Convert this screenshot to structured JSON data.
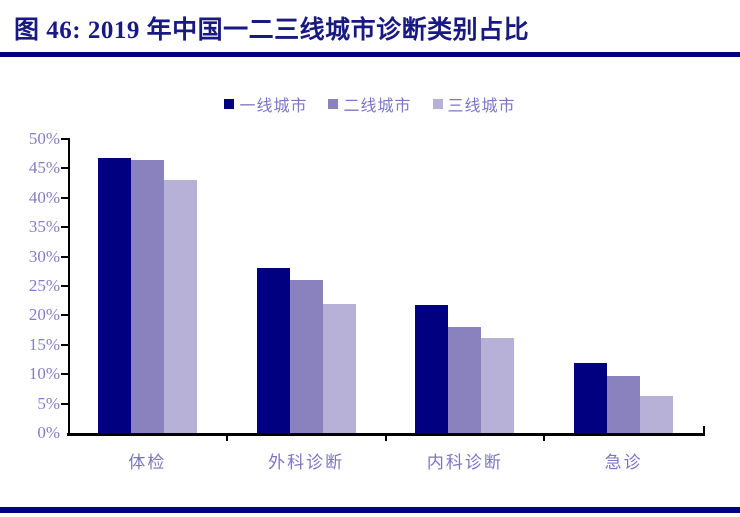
{
  "title": "图 46:  2019 年中国一二三线城市诊断类别占比",
  "accent_color": "#000080",
  "text_colors": {
    "title": "#191984",
    "axis_labels": "#837CCB",
    "category_labels": "#7C75C5",
    "legend_labels": "#7C75C5"
  },
  "chart_data": {
    "type": "bar",
    "title": "2019 年中国一二三线城市诊断类别占比",
    "categories": [
      "体检",
      "外科诊断",
      "内科诊断",
      "急诊"
    ],
    "series": [
      {
        "name": "一线城市",
        "color": "#000080",
        "values": [
          46.8,
          28.0,
          21.7,
          11.9
        ]
      },
      {
        "name": "二线城市",
        "color": "#8A82BE",
        "values": [
          46.5,
          26.0,
          18.0,
          9.7
        ]
      },
      {
        "name": "三线城市",
        "color": "#B7B1D8",
        "values": [
          43.0,
          22.0,
          16.2,
          6.3
        ]
      }
    ],
    "xlabel": "",
    "ylabel": "",
    "ylim": [
      0,
      50
    ],
    "y_tick_step": 5,
    "y_tick_labels": [
      "0%",
      "5%",
      "10%",
      "15%",
      "20%",
      "25%",
      "30%",
      "35%",
      "40%",
      "45%",
      "50%"
    ],
    "grid": false,
    "legend_position": "top-center"
  }
}
